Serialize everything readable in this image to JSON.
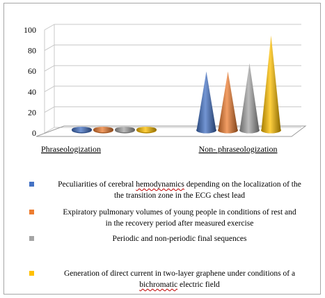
{
  "chart_data": {
    "type": "bar",
    "subtype": "3d-cone",
    "title": "",
    "xlabel": "",
    "ylabel": "",
    "ylim": [
      0,
      100
    ],
    "yticks": [
      0,
      20,
      40,
      60,
      80,
      100
    ],
    "grid": true,
    "legend_position": "bottom",
    "categories": [
      "Phraseologization",
      "Non- phraseologization"
    ],
    "series": [
      {
        "name": "Peculiarities of cerebral hemodynamics depending on the localization of the transition zone in the ECG chest lead",
        "color": "#4472c4",
        "values": [
          1,
          57
        ]
      },
      {
        "name": "Expiratory pulmonary volumes of young people in conditions of rest and in the recovery period after measured exercise",
        "color": "#ed7d31",
        "values": [
          1,
          57
        ]
      },
      {
        "name": "Periodic and non-periodic final sequences",
        "color": "#a5a5a5",
        "values": [
          1,
          65
        ]
      },
      {
        "name": "Generation of direct current in two-layer graphene under conditions of a bichromatic electric field",
        "color": "#ffc000",
        "values": [
          1,
          92
        ]
      }
    ]
  },
  "legend": {
    "items": [
      {
        "line1": "Peculiarities of cerebral ",
        "line1_squig": "hemodynamics",
        "line1_rest": " depending on the localization of the",
        "line2": "the transition zone in the ECG chest lead"
      },
      {
        "line1": "Expiratory pulmonary volumes of young people in conditions of rest and",
        "line1_squig": "",
        "line1_rest": "",
        "line2": "in the recovery period after measured exercise"
      },
      {
        "line1": "Periodic and non-periodic final sequences",
        "line1_squig": "",
        "line1_rest": "",
        "line2": ""
      },
      {
        "line1": "Generation of direct current in two-layer graphene under conditions of a",
        "line1_squig": "",
        "line1_rest": "",
        "line2_squig": "bichromatic",
        "line2": " electric field"
      }
    ]
  }
}
